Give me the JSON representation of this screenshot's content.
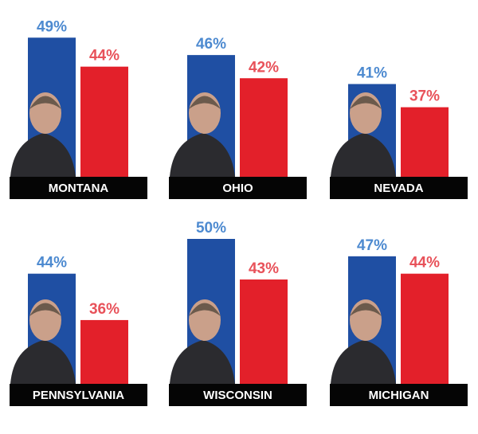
{
  "chart_data": [
    {
      "type": "bar",
      "title": "MONTANA",
      "values": [
        49,
        44
      ],
      "value_labels": [
        "49%",
        "44%"
      ],
      "colors": [
        "#1f4fa3",
        "#e3202a"
      ],
      "label_colors": [
        "#4d8ad0",
        "#e8525a"
      ],
      "ylim": [
        25,
        50
      ]
    },
    {
      "type": "bar",
      "title": "OHIO",
      "values": [
        46,
        42
      ],
      "value_labels": [
        "46%",
        "42%"
      ],
      "colors": [
        "#1f4fa3",
        "#e3202a"
      ],
      "label_colors": [
        "#4d8ad0",
        "#e8525a"
      ],
      "ylim": [
        25,
        50
      ]
    },
    {
      "type": "bar",
      "title": "NEVADA",
      "values": [
        41,
        37
      ],
      "value_labels": [
        "41%",
        "37%"
      ],
      "colors": [
        "#1f4fa3",
        "#e3202a"
      ],
      "label_colors": [
        "#4d8ad0",
        "#e8525a"
      ],
      "ylim": [
        25,
        50
      ]
    },
    {
      "type": "bar",
      "title": "PENNSYLVANIA",
      "values": [
        44,
        36
      ],
      "value_labels": [
        "44%",
        "36%"
      ],
      "colors": [
        "#1f4fa3",
        "#e3202a"
      ],
      "label_colors": [
        "#4d8ad0",
        "#e8525a"
      ],
      "ylim": [
        25,
        50
      ]
    },
    {
      "type": "bar",
      "title": "WISCONSIN",
      "values": [
        50,
        43
      ],
      "value_labels": [
        "50%",
        "43%"
      ],
      "colors": [
        "#1f4fa3",
        "#e3202a"
      ],
      "label_colors": [
        "#4d8ad0",
        "#e8525a"
      ],
      "ylim": [
        25,
        50
      ]
    },
    {
      "type": "bar",
      "title": "MICHIGAN",
      "values": [
        47,
        44
      ],
      "value_labels": [
        "47%",
        "44%"
      ],
      "colors": [
        "#1f4fa3",
        "#e3202a"
      ],
      "label_colors": [
        "#4d8ad0",
        "#e8525a"
      ],
      "ylim": [
        25,
        50
      ]
    }
  ]
}
